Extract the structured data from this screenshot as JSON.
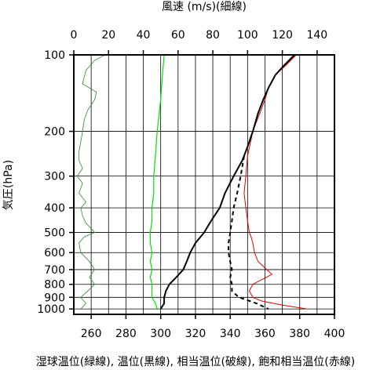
{
  "chart_data": {
    "type": "line",
    "title_top": "風速 (m/s)(細線)",
    "xlabel": "湿球温位(緑線), 温位(黒線), 相当温位(破線), 飽和相当温位(赤線)",
    "ylabel": "気圧(hPa)",
    "x_temp_ticks": [
      260,
      280,
      300,
      320,
      340,
      360,
      380,
      400
    ],
    "x_temp_range": [
      250,
      400
    ],
    "x_wind_ticks": [
      0,
      20,
      40,
      60,
      80,
      100,
      120,
      140
    ],
    "x_wind_range": [
      0,
      150
    ],
    "y_ticks": [
      100,
      200,
      300,
      400,
      500,
      600,
      700,
      800,
      900,
      1000
    ],
    "y_range": [
      100,
      1050
    ],
    "y_scale": "log",
    "grid": true,
    "colors": {
      "wet_bulb": "#2e8b2e",
      "potential": "#000000",
      "equivalent": "#000000",
      "saturated": "#dd0000",
      "wind": "#00e600"
    },
    "series": [
      {
        "key": "saturated",
        "style": "solid",
        "p": [
          100,
          110,
          120,
          135,
          150,
          170,
          200,
          250,
          300,
          350,
          400,
          450,
          500,
          520,
          550,
          600,
          650,
          700,
          730,
          750,
          780,
          800,
          850,
          900,
          930,
          960,
          1000
        ],
        "theta": [
          378,
          372,
          366,
          362,
          360,
          357,
          353,
          350,
          349,
          348,
          349,
          350,
          351,
          352,
          353,
          354,
          356,
          361,
          364,
          361,
          356,
          353,
          351,
          353,
          358,
          368,
          384
        ]
      },
      {
        "key": "potential",
        "style": "solid",
        "p": [
          100,
          110,
          120,
          135,
          150,
          170,
          200,
          230,
          260,
          300,
          350,
          400,
          450,
          500,
          550,
          600,
          650,
          700,
          750,
          800,
          850,
          900,
          950,
          1000
        ],
        "theta": [
          377,
          371,
          366,
          362,
          359,
          356,
          353,
          350,
          347,
          342,
          337,
          334,
          329,
          325,
          320,
          317,
          315,
          313,
          309,
          305,
          303,
          302,
          302,
          300
        ]
      },
      {
        "key": "equivalent",
        "style": "dashed",
        "p": [
          250,
          300,
          350,
          400,
          450,
          500,
          550,
          600,
          650,
          700,
          750,
          800,
          850,
          900,
          950,
          1000
        ],
        "theta": [
          348,
          346,
          344,
          342,
          341,
          340,
          339,
          339,
          340,
          341,
          340,
          341,
          341,
          345,
          355,
          362
        ]
      }
    ],
    "wind": {
      "p": [
        100,
        120,
        150,
        200,
        250,
        300,
        350,
        400,
        450,
        500,
        550,
        600,
        650,
        700,
        750,
        800,
        850,
        900,
        950,
        1000
      ],
      "speed": [
        52,
        51,
        50,
        48,
        47,
        46,
        46,
        45,
        45,
        44,
        44,
        45,
        44,
        45,
        44,
        45,
        45,
        45,
        47,
        48
      ]
    },
    "wetbulb": {
      "p": [
        100,
        105,
        115,
        130,
        140,
        150,
        165,
        180,
        200,
        220,
        240,
        260,
        280,
        300,
        320,
        350,
        380,
        400,
        430,
        460,
        490,
        500,
        520,
        550,
        600,
        650,
        700,
        750,
        800,
        850,
        900,
        950,
        1000
      ],
      "theta": [
        268,
        262,
        257,
        255,
        263,
        262,
        258,
        256,
        255,
        254,
        253,
        253,
        255,
        252,
        255,
        253,
        257,
        254,
        255,
        257,
        261,
        262,
        256,
        253,
        254,
        259,
        262,
        259,
        262,
        258,
        254,
        257,
        254
      ]
    }
  }
}
